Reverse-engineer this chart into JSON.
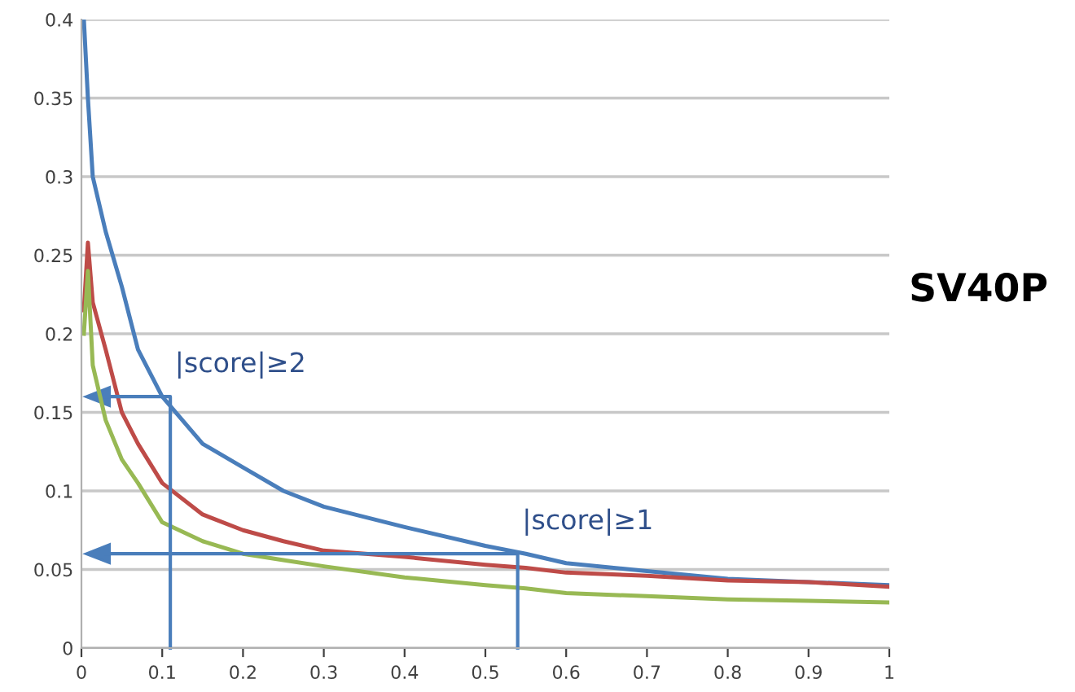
{
  "chart_data": {
    "type": "line",
    "title": "SV40P",
    "x": [
      0.003,
      0.008,
      0.014,
      0.03,
      0.05,
      0.07,
      0.1,
      0.15,
      0.2,
      0.25,
      0.3,
      0.4,
      0.5,
      0.55,
      0.6,
      0.7,
      0.8,
      0.9,
      1.0
    ],
    "series": [
      {
        "color": "#4a7ebb",
        "values": [
          0.4,
          0.35,
          0.3,
          0.265,
          0.23,
          0.19,
          0.16,
          0.13,
          0.115,
          0.1,
          0.09,
          0.077,
          0.065,
          0.06,
          0.054,
          0.049,
          0.044,
          0.042,
          0.04
        ]
      },
      {
        "color": "#be4b48",
        "values": [
          0.215,
          0.258,
          0.22,
          0.19,
          0.15,
          0.13,
          0.105,
          0.085,
          0.075,
          0.068,
          0.062,
          0.058,
          0.053,
          0.051,
          0.048,
          0.046,
          0.043,
          0.042,
          0.039
        ]
      },
      {
        "color": "#98b954",
        "values": [
          0.2,
          0.24,
          0.18,
          0.145,
          0.12,
          0.105,
          0.08,
          0.068,
          0.06,
          0.056,
          0.052,
          0.045,
          0.04,
          0.038,
          0.035,
          0.033,
          0.031,
          0.03,
          0.029
        ]
      }
    ],
    "annotations": [
      {
        "text": "|score|≥2",
        "x": 0.11,
        "y": 0.16
      },
      {
        "text": "|score|≥1",
        "x": 0.54,
        "y": 0.06
      }
    ],
    "xlim": [
      0,
      1
    ],
    "xticks": [
      0,
      0.1,
      0.2,
      0.3,
      0.4,
      0.5,
      0.6,
      0.7,
      0.8,
      0.9,
      1
    ],
    "ylim": [
      0,
      0.4
    ],
    "yticks": [
      0,
      0.05,
      0.1,
      0.15,
      0.2,
      0.25,
      0.3,
      0.35,
      0.4
    ],
    "grid": "y",
    "marker": "none",
    "line_style": "solid"
  }
}
